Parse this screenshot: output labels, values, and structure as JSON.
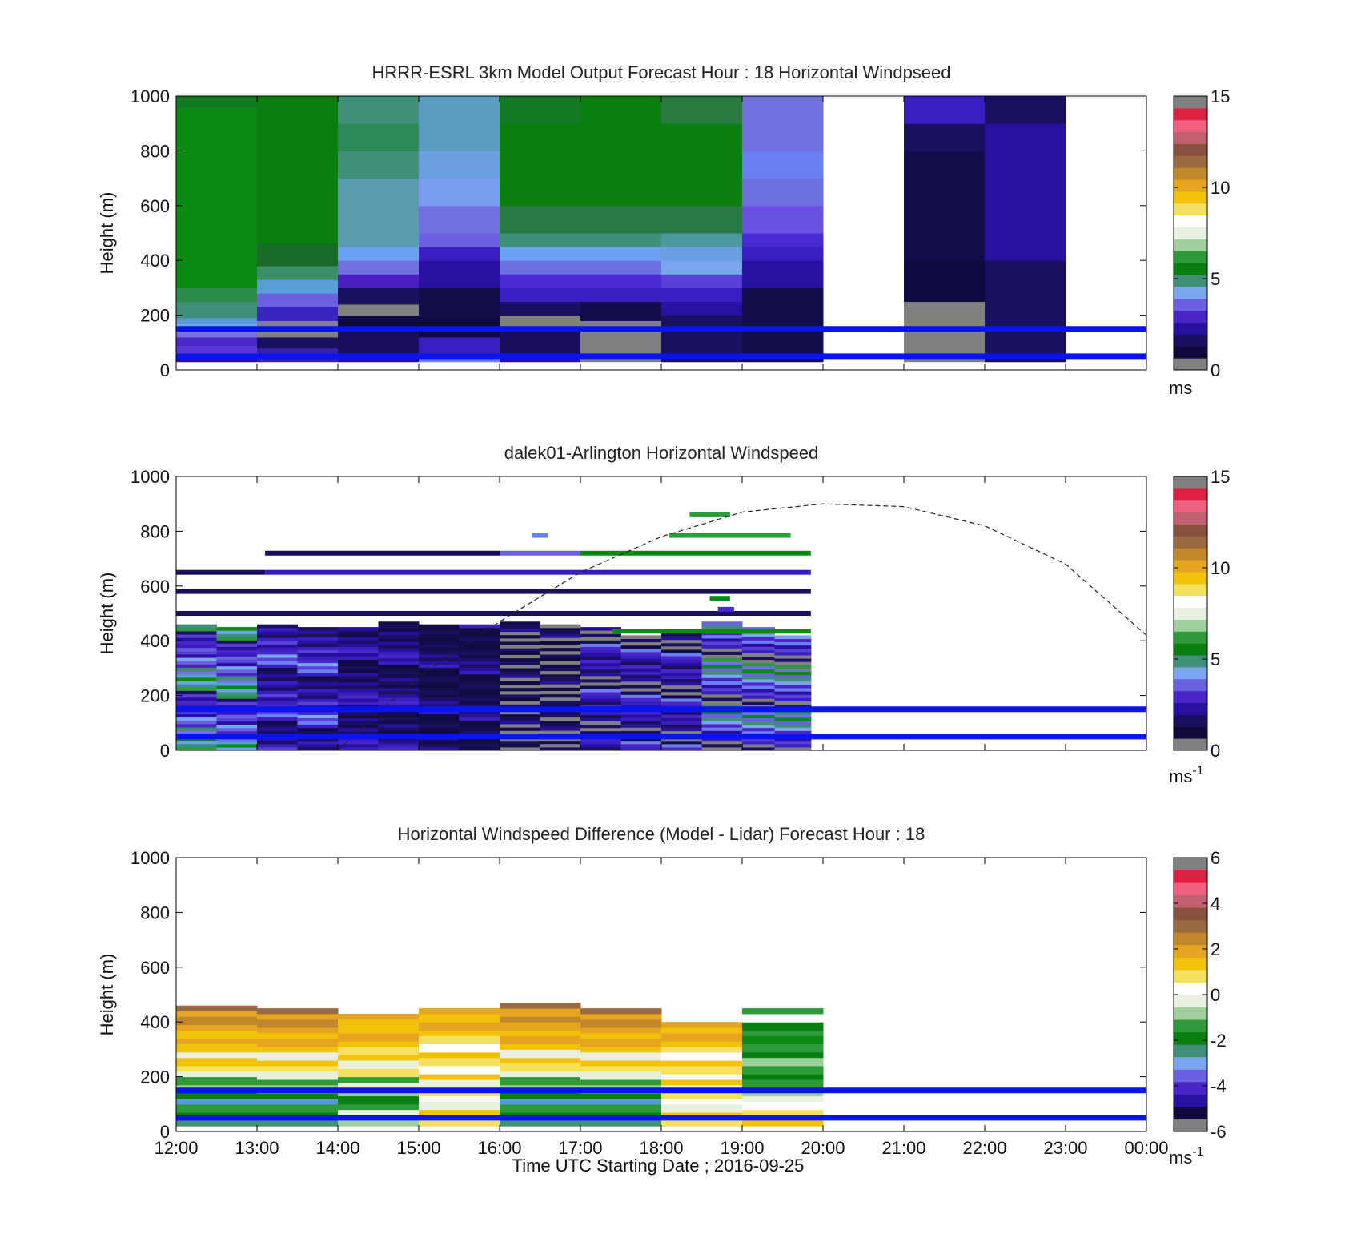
{
  "figure": {
    "xlabel": "Time UTC  Starting Date ; 2016-09-25",
    "x_ticks": [
      "12:00",
      "13:00",
      "14:00",
      "15:00",
      "16:00",
      "17:00",
      "18:00",
      "19:00",
      "20:00",
      "21:00",
      "22:00",
      "23:00",
      "00:00"
    ]
  },
  "chart_data": [
    {
      "type": "heatmap",
      "title": "HRRR-ESRL 3km Model Output   Forecast Hour : 18 Horizontal Windpseed",
      "ylabel": "Height (m)",
      "xlim": [
        12,
        24
      ],
      "ylim": [
        0,
        1000
      ],
      "y_ticks": [
        "0",
        "200",
        "400",
        "600",
        "800",
        "1000"
      ],
      "colorbar": {
        "ticks": [
          "0",
          "5",
          "10",
          "15"
        ],
        "min": 0,
        "max": 15,
        "unit_main": "ms",
        "unit_sup": ""
      },
      "reference_lines_m": [
        50,
        150
      ],
      "columns": [
        {
          "t0": 12,
          "t1": 13,
          "cells": [
            [
              30,
              60,
              "#2a0fa0"
            ],
            [
              60,
              90,
              "#5a35d8"
            ],
            [
              90,
              120,
              "#4a25c8"
            ],
            [
              120,
              150,
              "#7a70e0"
            ],
            [
              150,
              170,
              "#6da8f0"
            ],
            [
              170,
              190,
              "#5b9ad8"
            ],
            [
              190,
              250,
              "#3f8f7a"
            ],
            [
              250,
              300,
              "#2a8a4a"
            ],
            [
              300,
              960,
              "#0a8a12"
            ],
            [
              960,
              1000,
              "#127a20"
            ]
          ]
        },
        {
          "t0": 13,
          "t1": 14,
          "cells": [
            [
              30,
              80,
              "#3a20b0"
            ],
            [
              80,
              120,
              "#1a1060"
            ],
            [
              120,
              180,
              "#808080"
            ],
            [
              180,
              230,
              "#3a25c0"
            ],
            [
              230,
              280,
              "#6a60e0"
            ],
            [
              280,
              330,
              "#5a9ed8"
            ],
            [
              330,
              380,
              "#3a8e6a"
            ],
            [
              380,
              460,
              "#1a6a2a"
            ],
            [
              460,
              1000,
              "#087f10"
            ]
          ]
        },
        {
          "t0": 14,
          "t1": 15,
          "cells": [
            [
              30,
              60,
              "#2a10a0"
            ],
            [
              60,
              140,
              "#1a0e60"
            ],
            [
              140,
              200,
              "#0f0a40"
            ],
            [
              200,
              240,
              "#808080"
            ],
            [
              240,
              300,
              "#1a1060"
            ],
            [
              300,
              350,
              "#4a20c0"
            ],
            [
              350,
              400,
              "#7070e0"
            ],
            [
              400,
              450,
              "#6aa0f0"
            ],
            [
              450,
              700,
              "#5a9bb0"
            ],
            [
              700,
              800,
              "#3f8f7a"
            ],
            [
              800,
              900,
              "#2e8a5a"
            ],
            [
              900,
              1000,
              "#3f8f7a"
            ]
          ]
        },
        {
          "t0": 15,
          "t1": 16,
          "cells": [
            [
              30,
              60,
              "#6a80f0"
            ],
            [
              60,
              120,
              "#3a1ec0"
            ],
            [
              120,
              200,
              "#0f0a40"
            ],
            [
              200,
              300,
              "#120c4a"
            ],
            [
              300,
              400,
              "#2a10a0"
            ],
            [
              400,
              450,
              "#3a1ec0"
            ],
            [
              450,
              500,
              "#6a60e0"
            ],
            [
              500,
              600,
              "#7070e0"
            ],
            [
              600,
              700,
              "#7a9cf0"
            ],
            [
              700,
              800,
              "#6aa0e0"
            ],
            [
              800,
              1000,
              "#5a9bc0"
            ]
          ]
        },
        {
          "t0": 16,
          "t1": 17,
          "cells": [
            [
              30,
              60,
              "#2a10a0"
            ],
            [
              60,
              150,
              "#1a0e60"
            ],
            [
              150,
              200,
              "#808080"
            ],
            [
              200,
              250,
              "#1a1060"
            ],
            [
              250,
              300,
              "#3a1ec0"
            ],
            [
              300,
              350,
              "#4a2ad0"
            ],
            [
              350,
              400,
              "#6a70e0"
            ],
            [
              400,
              450,
              "#6aa0f0"
            ],
            [
              450,
              500,
              "#3f8f7a"
            ],
            [
              500,
              600,
              "#287a45"
            ],
            [
              600,
              900,
              "#087f10"
            ],
            [
              900,
              1000,
              "#157a25"
            ]
          ]
        },
        {
          "t0": 17,
          "t1": 18,
          "cells": [
            [
              30,
              50,
              "#808080"
            ],
            [
              50,
              180,
              "#808080"
            ],
            [
              180,
              250,
              "#120c4a"
            ],
            [
              250,
              300,
              "#3a1ec0"
            ],
            [
              300,
              350,
              "#4a2ad0"
            ],
            [
              350,
              400,
              "#6a70e0"
            ],
            [
              400,
              450,
              "#6aa0f0"
            ],
            [
              450,
              500,
              "#3f8f7a"
            ],
            [
              500,
              600,
              "#287a45"
            ],
            [
              600,
              900,
              "#087f10"
            ],
            [
              900,
              1000,
              "#087f10"
            ]
          ]
        },
        {
          "t0": 18,
          "t1": 19,
          "cells": [
            [
              30,
              200,
              "#1a1060"
            ],
            [
              200,
              250,
              "#2a10a0"
            ],
            [
              250,
              300,
              "#3a1ec0"
            ],
            [
              300,
              350,
              "#5a40d8"
            ],
            [
              350,
              400,
              "#7aa6f0"
            ],
            [
              400,
              450,
              "#6aa0e0"
            ],
            [
              450,
              500,
              "#4a9aa0"
            ],
            [
              500,
              600,
              "#287a45"
            ],
            [
              600,
              900,
              "#087f10"
            ],
            [
              900,
              1000,
              "#2a7a40"
            ]
          ]
        },
        {
          "t0": 19,
          "t1": 20,
          "cells": [
            [
              30,
              300,
              "#120c4a"
            ],
            [
              300,
              400,
              "#2a10a0"
            ],
            [
              400,
              450,
              "#3a1ec0"
            ],
            [
              450,
              500,
              "#4a2ad0"
            ],
            [
              500,
              600,
              "#6a50e0"
            ],
            [
              600,
              700,
              "#6a70e0"
            ],
            [
              700,
              800,
              "#6a80f0"
            ],
            [
              800,
              1000,
              "#7070e0"
            ]
          ]
        },
        {
          "t0": 21,
          "t1": 22,
          "cells": [
            [
              30,
              50,
              "#808080"
            ],
            [
              50,
              250,
              "#808080"
            ],
            [
              250,
              400,
              "#0f0a40"
            ],
            [
              400,
              800,
              "#120c4a"
            ],
            [
              800,
              900,
              "#1a1060"
            ],
            [
              900,
              1000,
              "#3a1ec0"
            ]
          ]
        },
        {
          "t0": 22,
          "t1": 23,
          "cells": [
            [
              30,
              400,
              "#1a1060"
            ],
            [
              400,
              900,
              "#2a10a0"
            ],
            [
              900,
              1000,
              "#1a1060"
            ]
          ]
        }
      ]
    },
    {
      "type": "heatmap",
      "title": "dalek01-Arlington  Horizontal Windspeed",
      "ylabel": "Height (m)",
      "xlim": [
        12,
        24
      ],
      "ylim": [
        0,
        1000
      ],
      "y_ticks": [
        "0",
        "200",
        "400",
        "600",
        "800",
        "1000"
      ],
      "colorbar": {
        "ticks": [
          "0",
          "5",
          "10",
          "15"
        ],
        "min": 0,
        "max": 15,
        "unit_main": "ms",
        "unit_sup": "-1"
      },
      "reference_lines_m": [
        50,
        150
      ],
      "sun_curve": {
        "x": [
          14.0,
          15.0,
          16.0,
          17.0,
          18.0,
          19.0,
          20.0,
          21.0,
          22.0,
          23.0,
          24.0
        ],
        "y": [
          0,
          270,
          470,
          650,
          780,
          870,
          900,
          890,
          820,
          680,
          420
        ]
      },
      "blocks": [
        {
          "t0": 12.0,
          "t1": 12.5,
          "h0": 0,
          "h1": 460,
          "pattern": "mix-blue-green"
        },
        {
          "t0": 12.5,
          "t1": 13.0,
          "h0": 0,
          "h1": 450,
          "pattern": "mix-blue-green"
        },
        {
          "t0": 13.0,
          "t1": 13.5,
          "h0": 0,
          "h1": 460,
          "pattern": "mix-purple"
        },
        {
          "t0": 13.5,
          "t1": 14.0,
          "h0": 0,
          "h1": 450,
          "pattern": "mix-purple"
        },
        {
          "t0": 14.0,
          "t1": 14.5,
          "h0": 0,
          "h1": 450,
          "pattern": "dark-purple"
        },
        {
          "t0": 14.5,
          "t1": 15.0,
          "h0": 0,
          "h1": 470,
          "pattern": "dark-purple"
        },
        {
          "t0": 15.0,
          "t1": 15.5,
          "h0": 0,
          "h1": 460,
          "pattern": "dark"
        },
        {
          "t0": 15.5,
          "t1": 16.0,
          "h0": 0,
          "h1": 460,
          "pattern": "dark"
        },
        {
          "t0": 16.0,
          "t1": 16.5,
          "h0": 0,
          "h1": 470,
          "pattern": "dark-gray"
        },
        {
          "t0": 16.5,
          "t1": 17.0,
          "h0": 0,
          "h1": 460,
          "pattern": "dark-gray"
        },
        {
          "t0": 17.0,
          "t1": 17.5,
          "h0": 0,
          "h1": 450,
          "pattern": "purple-gray"
        },
        {
          "t0": 17.5,
          "t1": 18.0,
          "h0": 0,
          "h1": 420,
          "pattern": "purple-gray"
        },
        {
          "t0": 18.0,
          "t1": 18.5,
          "h0": 0,
          "h1": 440,
          "pattern": "purple-gray"
        },
        {
          "t0": 18.5,
          "t1": 19.0,
          "h0": 0,
          "h1": 470,
          "pattern": "mix-light"
        },
        {
          "t0": 19.0,
          "t1": 19.4,
          "h0": 0,
          "h1": 450,
          "pattern": "mix-light"
        },
        {
          "t0": 19.4,
          "t1": 19.85,
          "h0": 0,
          "h1": 420,
          "pattern": "mix-light"
        }
      ],
      "streaks": [
        {
          "t0": 12.0,
          "t1": 13.1,
          "h": 650,
          "color": "#1a1060"
        },
        {
          "t0": 13.1,
          "t1": 19.85,
          "h": 650,
          "color": "#3a1ec0"
        },
        {
          "t0": 12.0,
          "t1": 19.85,
          "h": 580,
          "color": "#1a1060"
        },
        {
          "t0": 12.0,
          "t1": 19.85,
          "h": 500,
          "color": "#1a1060"
        },
        {
          "t0": 13.1,
          "t1": 16.0,
          "h": 720,
          "color": "#1a0e60"
        },
        {
          "t0": 16.0,
          "t1": 17.0,
          "h": 720,
          "color": "#6a60e0"
        },
        {
          "t0": 17.0,
          "t1": 19.85,
          "h": 720,
          "color": "#0a8a12"
        },
        {
          "t0": 18.1,
          "t1": 19.6,
          "h": 785,
          "color": "#2a9a3a"
        },
        {
          "t0": 16.4,
          "t1": 16.6,
          "h": 785,
          "color": "#6a80f0"
        },
        {
          "t0": 18.35,
          "t1": 18.85,
          "h": 860,
          "color": "#2a9a3a"
        },
        {
          "t0": 18.6,
          "t1": 18.85,
          "h": 555,
          "color": "#0a8a12"
        },
        {
          "t0": 18.7,
          "t1": 18.9,
          "h": 515,
          "color": "#4a2ad0"
        },
        {
          "t0": 17.4,
          "t1": 19.85,
          "h": 435,
          "color": "#0a8a12"
        }
      ]
    },
    {
      "type": "heatmap",
      "title": "Horizontal Windspeed Difference (Model - Lidar) Forecast Hour : 18",
      "ylabel": "Height (m)",
      "xlim": [
        12,
        24
      ],
      "ylim": [
        0,
        1000
      ],
      "y_ticks": [
        "0",
        "200",
        "400",
        "600",
        "800",
        "1000"
      ],
      "colorbar": {
        "ticks": [
          "-6",
          "-4",
          "-2",
          "0",
          "2",
          "4",
          "6"
        ],
        "min": -6,
        "max": 6,
        "unit_main": "ms",
        "unit_sup": "-1"
      },
      "reference_lines_m": [
        50,
        150
      ],
      "columns": [
        {
          "t0": 12,
          "t1": 13,
          "top": 460,
          "pattern": "warm-to-green"
        },
        {
          "t0": 13,
          "t1": 14,
          "top": 450,
          "pattern": "warm-to-green"
        },
        {
          "t0": 14,
          "t1": 15,
          "top": 430,
          "pattern": "yellow-to-green"
        },
        {
          "t0": 15,
          "t1": 16,
          "top": 450,
          "pattern": "yellow-white"
        },
        {
          "t0": 16,
          "t1": 17,
          "top": 470,
          "pattern": "warm-to-green"
        },
        {
          "t0": 17,
          "t1": 18,
          "top": 450,
          "pattern": "warm-to-green"
        },
        {
          "t0": 18,
          "t1": 19,
          "top": 400,
          "pattern": "yellow-white"
        },
        {
          "t0": 19,
          "t1": 20,
          "top": 450,
          "pattern": "green-to-yellow"
        }
      ]
    }
  ]
}
